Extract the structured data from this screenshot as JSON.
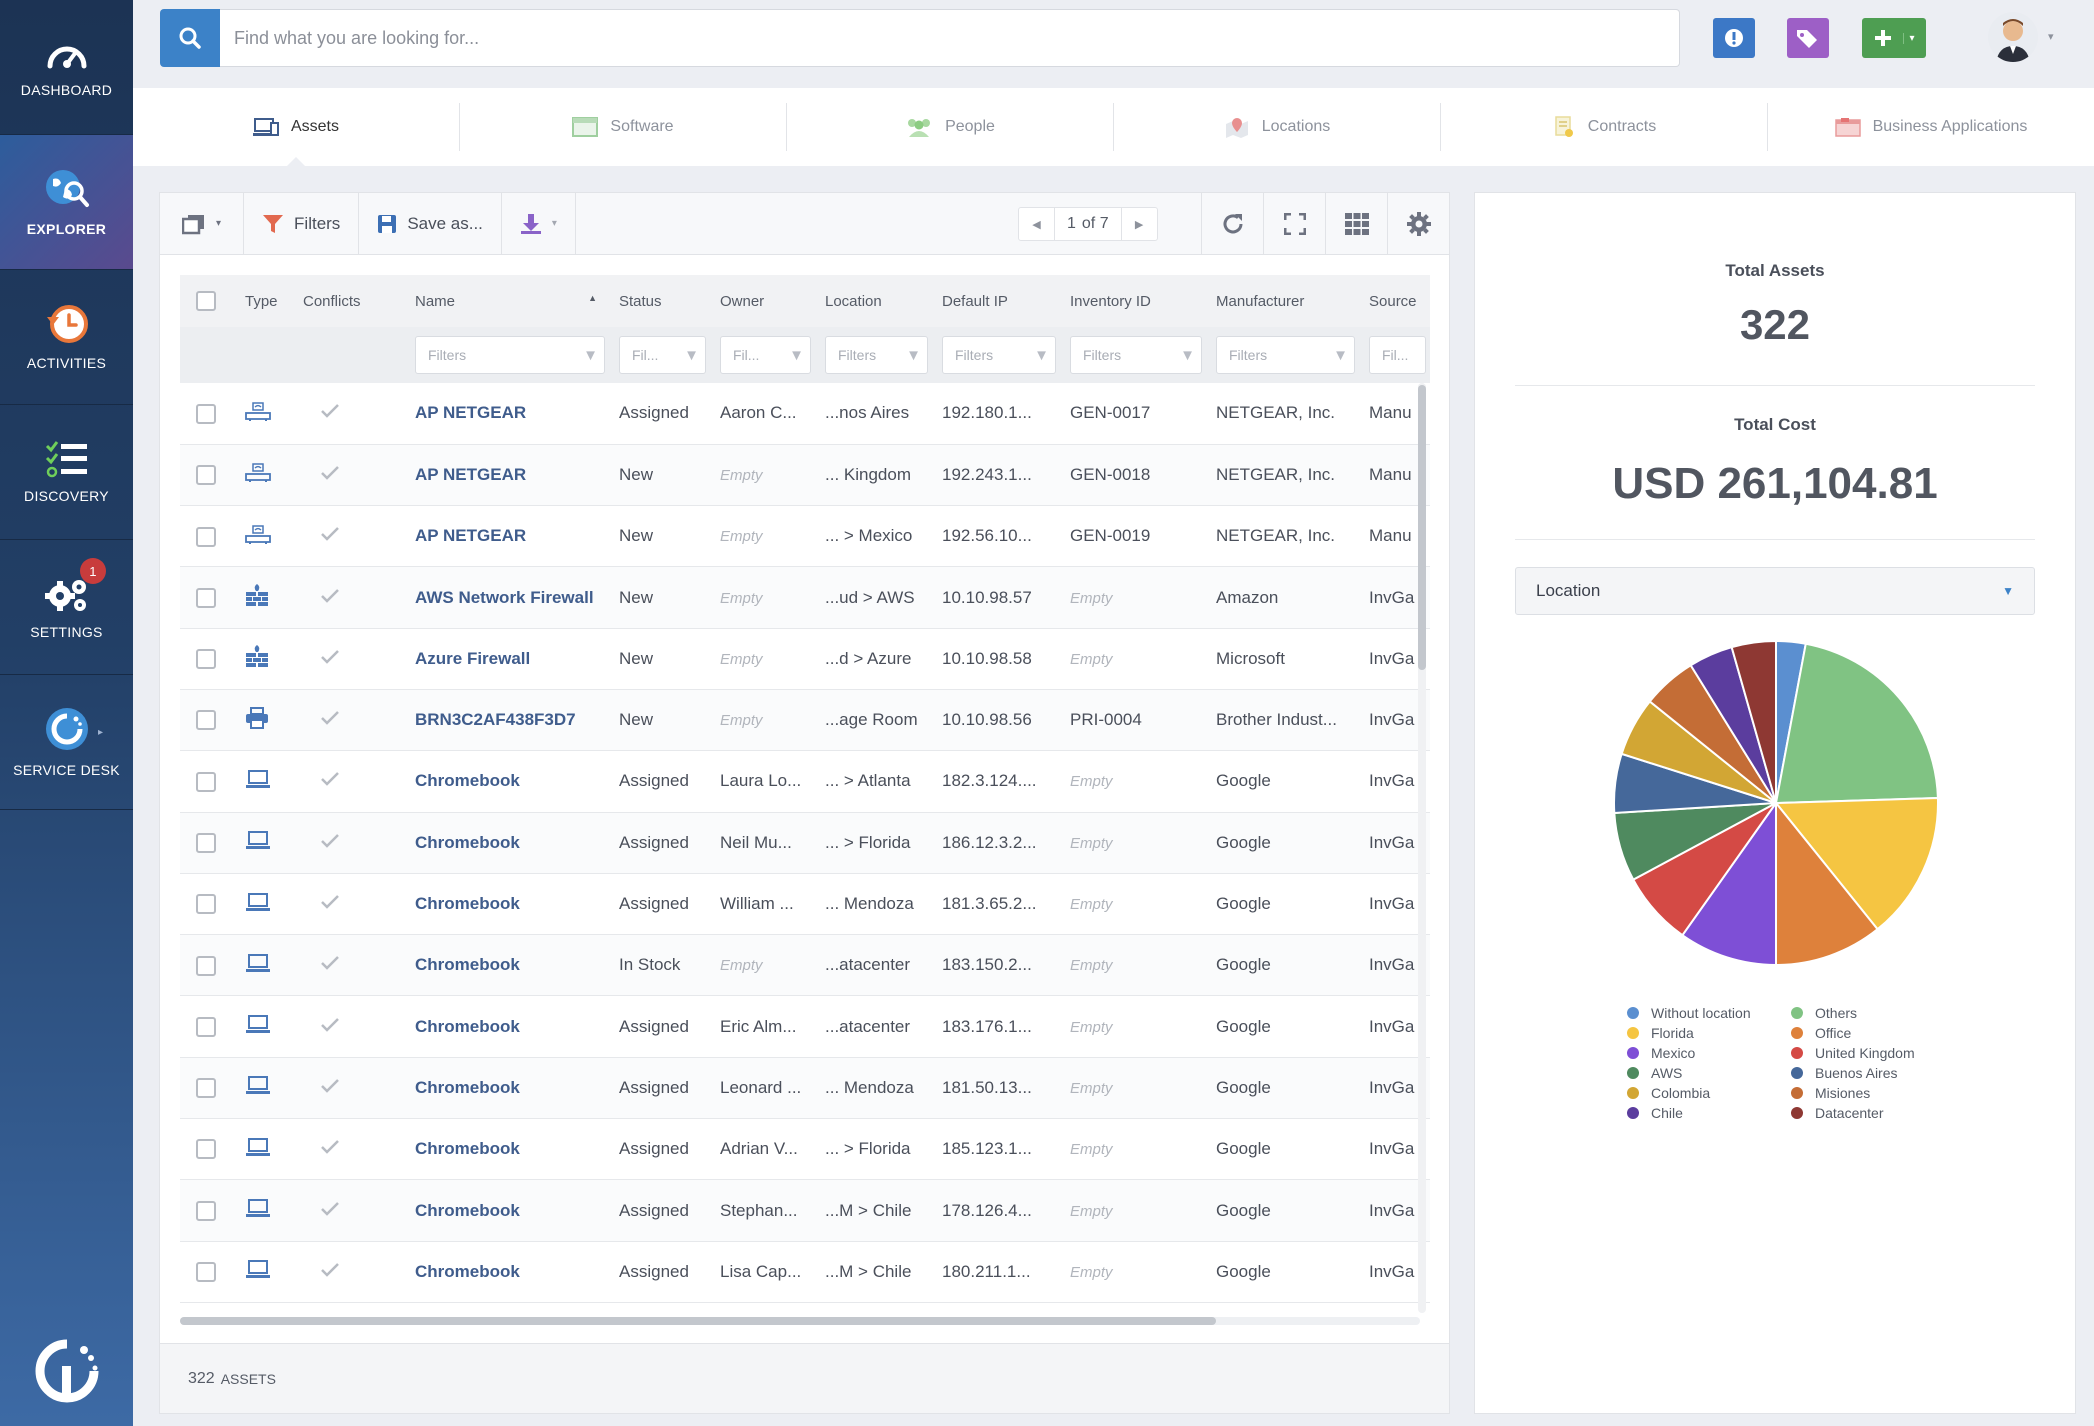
{
  "sidebar": {
    "items": [
      {
        "label": "DASHBOARD",
        "icon": "speedometer-icon"
      },
      {
        "label": "EXPLORER",
        "icon": "globe-search-icon"
      },
      {
        "label": "ACTIVITIES",
        "icon": "history-clock-icon"
      },
      {
        "label": "DISCOVERY",
        "icon": "checklist-icon"
      },
      {
        "label": "SETTINGS",
        "icon": "gears-icon",
        "badge": "1"
      },
      {
        "label": "SERVICE DESK",
        "icon": "service-desk-logo-icon"
      }
    ],
    "active": "EXPLORER"
  },
  "search": {
    "placeholder": "Find what you are looking for..."
  },
  "tabs": [
    {
      "label": "Assets",
      "active": true
    },
    {
      "label": "Software"
    },
    {
      "label": "People"
    },
    {
      "label": "Locations"
    },
    {
      "label": "Contracts"
    },
    {
      "label": "Business Applications"
    }
  ],
  "toolbar": {
    "filters_label": "Filters",
    "save_label": "Save as...",
    "page_current": "1",
    "page_of": "of 7"
  },
  "grid": {
    "columns": [
      "Type",
      "Conflicts",
      "Name",
      "Status",
      "Owner",
      "Location",
      "Default IP",
      "Inventory ID",
      "Manufacturer",
      "Source"
    ],
    "filter_placeholders": [
      "Filters",
      "Fil...",
      "Fil...",
      "Filters",
      "Filters",
      "Filters",
      "Filters",
      "Fil..."
    ],
    "rows": [
      {
        "type": "router",
        "name": "AP NETGEAR",
        "status": "Assigned",
        "owner": "Aaron C...",
        "location": "...nos Aires",
        "ip": "192.180.1...",
        "inventory": "GEN-0017",
        "manufacturer": "NETGEAR, Inc.",
        "source": "Manu"
      },
      {
        "type": "router",
        "name": "AP NETGEAR",
        "status": "New",
        "owner": "Empty",
        "location": "... Kingdom",
        "ip": "192.243.1...",
        "inventory": "GEN-0018",
        "manufacturer": "NETGEAR, Inc.",
        "source": "Manu"
      },
      {
        "type": "router",
        "name": "AP NETGEAR",
        "status": "New",
        "owner": "Empty",
        "location": "... > Mexico",
        "ip": "192.56.10...",
        "inventory": "GEN-0019",
        "manufacturer": "NETGEAR, Inc.",
        "source": "Manu"
      },
      {
        "type": "firewall",
        "name": "AWS Network Firewall",
        "status": "New",
        "owner": "Empty",
        "location": "...ud > AWS",
        "ip": "10.10.98.57",
        "inventory": "Empty",
        "manufacturer": "Amazon",
        "source": "InvGa"
      },
      {
        "type": "firewall",
        "name": "Azure Firewall",
        "status": "New",
        "owner": "Empty",
        "location": "...d > Azure",
        "ip": "10.10.98.58",
        "inventory": "Empty",
        "manufacturer": "Microsoft",
        "source": "InvGa"
      },
      {
        "type": "printer",
        "name": "BRN3C2AF438F3D7",
        "status": "New",
        "owner": "Empty",
        "location": "...age Room",
        "ip": "10.10.98.56",
        "inventory": "PRI-0004",
        "manufacturer": "Brother Indust...",
        "source": "InvGa"
      },
      {
        "type": "laptop",
        "name": "Chromebook",
        "status": "Assigned",
        "owner": "Laura Lo...",
        "location": "... > Atlanta",
        "ip": "182.3.124....",
        "inventory": "Empty",
        "manufacturer": "Google",
        "source": "InvGa"
      },
      {
        "type": "laptop",
        "name": "Chromebook",
        "status": "Assigned",
        "owner": "Neil Mu...",
        "location": "... > Florida",
        "ip": "186.12.3.2...",
        "inventory": "Empty",
        "manufacturer": "Google",
        "source": "InvGa"
      },
      {
        "type": "laptop",
        "name": "Chromebook",
        "status": "Assigned",
        "owner": "William ...",
        "location": "... Mendoza",
        "ip": "181.3.65.2...",
        "inventory": "Empty",
        "manufacturer": "Google",
        "source": "InvGa"
      },
      {
        "type": "laptop",
        "name": "Chromebook",
        "status": "In Stock",
        "owner": "Empty",
        "location": "...atacenter",
        "ip": "183.150.2...",
        "inventory": "Empty",
        "manufacturer": "Google",
        "source": "InvGa"
      },
      {
        "type": "laptop",
        "name": "Chromebook",
        "status": "Assigned",
        "owner": "Eric Alm...",
        "location": "...atacenter",
        "ip": "183.176.1...",
        "inventory": "Empty",
        "manufacturer": "Google",
        "source": "InvGa"
      },
      {
        "type": "laptop",
        "name": "Chromebook",
        "status": "Assigned",
        "owner": "Leonard ...",
        "location": "... Mendoza",
        "ip": "181.50.13...",
        "inventory": "Empty",
        "manufacturer": "Google",
        "source": "InvGa"
      },
      {
        "type": "laptop",
        "name": "Chromebook",
        "status": "Assigned",
        "owner": "Adrian V...",
        "location": "... > Florida",
        "ip": "185.123.1...",
        "inventory": "Empty",
        "manufacturer": "Google",
        "source": "InvGa"
      },
      {
        "type": "laptop",
        "name": "Chromebook",
        "status": "Assigned",
        "owner": "Stephan...",
        "location": "...M > Chile",
        "ip": "178.126.4...",
        "inventory": "Empty",
        "manufacturer": "Google",
        "source": "InvGa"
      },
      {
        "type": "laptop",
        "name": "Chromebook",
        "status": "Assigned",
        "owner": "Lisa Cap...",
        "location": "...M > Chile",
        "ip": "180.211.1...",
        "inventory": "Empty",
        "manufacturer": "Google",
        "source": "InvGa"
      }
    ],
    "footer_count": "322",
    "footer_label": "ASSETS"
  },
  "summary": {
    "total_assets_label": "Total Assets",
    "total_assets": "322",
    "total_cost_label": "Total Cost",
    "total_cost": "USD 261,104.81",
    "group_by": "Location"
  },
  "chart_data": {
    "type": "pie",
    "slices": [
      {
        "label": "Without location",
        "value": 3,
        "color": "#5b8fd0"
      },
      {
        "label": "Others",
        "value": 22,
        "color": "#80c383"
      },
      {
        "label": "Florida",
        "value": 15,
        "color": "#f5c542"
      },
      {
        "label": "Office",
        "value": 11,
        "color": "#de813b"
      },
      {
        "label": "Mexico",
        "value": 10,
        "color": "#7e4fd6"
      },
      {
        "label": "United Kingdom",
        "value": 7.5,
        "color": "#d44a45"
      },
      {
        "label": "AWS",
        "value": 7,
        "color": "#4f8a5f"
      },
      {
        "label": "Buenos Aires",
        "value": 6,
        "color": "#45689a"
      },
      {
        "label": "Colombia",
        "value": 6,
        "color": "#d2a634"
      },
      {
        "label": "Misiones",
        "value": 5.5,
        "color": "#c46d36"
      },
      {
        "label": "Chile",
        "value": 4.5,
        "color": "#5b3d9e"
      },
      {
        "label": "Datacenter",
        "value": 4.5,
        "color": "#8e3833"
      }
    ]
  }
}
